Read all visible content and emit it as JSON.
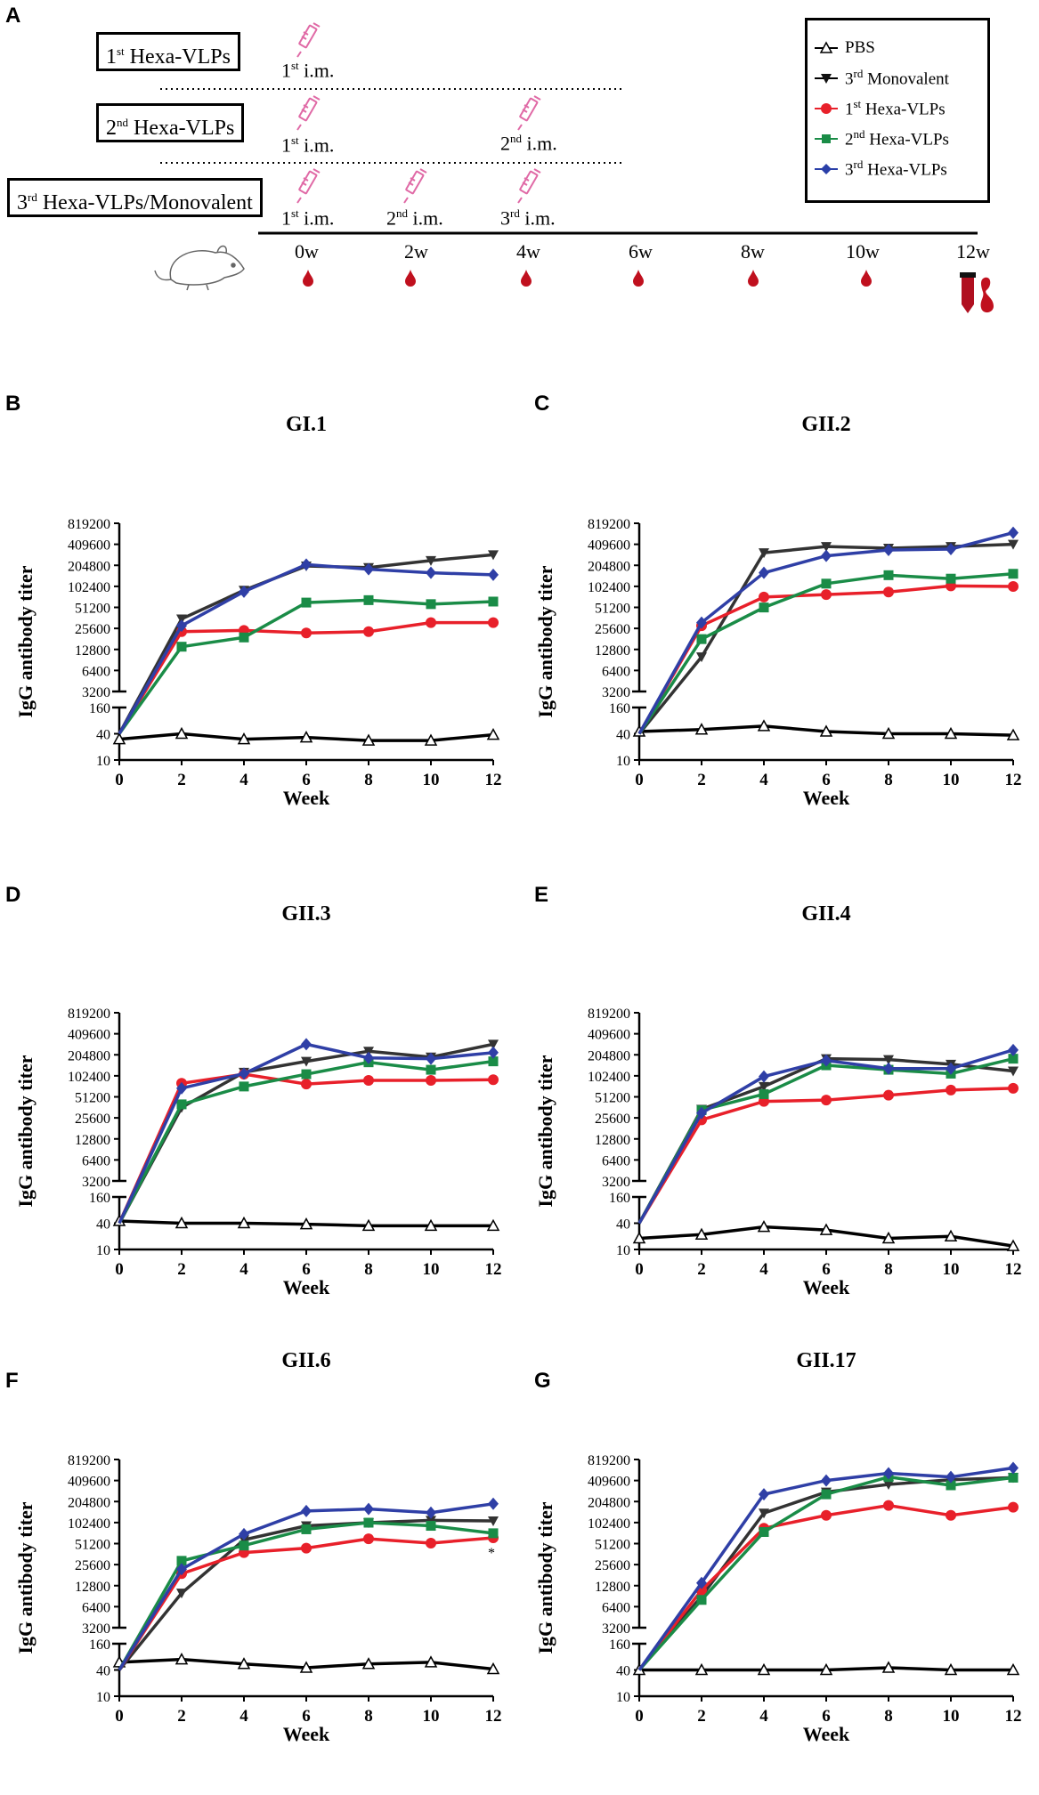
{
  "panel_letters": {
    "a": "A",
    "b": "B",
    "c": "C",
    "d": "D",
    "e": "E",
    "f": "F",
    "g": "G"
  },
  "schedule": {
    "groups": [
      {
        "sup": "st",
        "name": "Hexa-VLPs",
        "num": "1"
      },
      {
        "sup": "nd",
        "name": "Hexa-VLPs",
        "num": "2"
      },
      {
        "sup": "rd",
        "name": "Hexa-VLPs/Monovalent",
        "num": "3"
      }
    ],
    "injections": {
      "first": {
        "num": "1",
        "sup": "st",
        "text": "i.m."
      },
      "second": {
        "num": "2",
        "sup": "nd",
        "text": "i.m."
      },
      "third": {
        "num": "3",
        "sup": "rd",
        "text": "i.m."
      }
    },
    "weeks": [
      "0w",
      "2w",
      "4w",
      "6w",
      "8w",
      "10w",
      "12w"
    ]
  },
  "legend": [
    {
      "num": "",
      "sup": "",
      "name": "PBS",
      "color": "#000000",
      "marker": "triangle-open"
    },
    {
      "num": "3",
      "sup": "rd",
      "name": "Monovalent",
      "color": "#1a1a1a",
      "marker": "triangle-down"
    },
    {
      "num": "1",
      "sup": "st",
      "name": "Hexa-VLPs",
      "color": "#e8202a",
      "marker": "circle"
    },
    {
      "num": "2",
      "sup": "nd",
      "name": "Hexa-VLPs",
      "color": "#1a8c47",
      "marker": "square"
    },
    {
      "num": "3",
      "sup": "rd",
      "name": "Hexa-VLPs",
      "color": "#2a3fa8",
      "marker": "diamond"
    }
  ],
  "colors": {
    "pbs": "#000000",
    "mono": "#333333",
    "hexa1": "#e8202a",
    "hexa2": "#1a8c47",
    "hexa3": "#2f3fa6"
  },
  "chart_data": [
    {
      "panel": "B",
      "title": "GI.1",
      "type": "line",
      "xlabel": "Week",
      "ylabel": "IgG antibody titer",
      "x": [
        0,
        2,
        4,
        6,
        8,
        10,
        12
      ],
      "y_ticks_upper": [
        "819200",
        "409600",
        "204800",
        "102400",
        "51200",
        "25600",
        "12800",
        "6400",
        "3200"
      ],
      "y_ticks_lower": [
        "160",
        "40",
        "10"
      ],
      "series": [
        {
          "name": "PBS",
          "values": [
            30,
            40,
            30,
            33,
            28,
            28,
            38
          ]
        },
        {
          "name": "3rd Monovalent",
          "values": [
            40,
            35000,
            90000,
            200000,
            190000,
            240000,
            290000
          ]
        },
        {
          "name": "1st Hexa-VLPs",
          "values": [
            40,
            23000,
            24000,
            22000,
            23000,
            31000,
            31000
          ]
        },
        {
          "name": "2nd Hexa-VLPs",
          "values": [
            40,
            14000,
            19000,
            60000,
            65000,
            57000,
            62000
          ]
        },
        {
          "name": "3rd Hexa-VLPs",
          "values": [
            40,
            28000,
            86000,
            210000,
            180000,
            160000,
            150000
          ]
        }
      ]
    },
    {
      "panel": "C",
      "title": "GII.2",
      "type": "line",
      "xlabel": "Week",
      "ylabel": "IgG antibody titer",
      "x": [
        0,
        2,
        4,
        6,
        8,
        10,
        12
      ],
      "y_ticks_upper": [
        "819200",
        "409600",
        "204800",
        "102400",
        "51200",
        "25600",
        "12800",
        "6400",
        "3200"
      ],
      "y_ticks_lower": [
        "160",
        "40",
        "10"
      ],
      "series": [
        {
          "name": "PBS",
          "values": [
            45,
            50,
            60,
            45,
            40,
            40,
            37
          ]
        },
        {
          "name": "3rd Monovalent",
          "values": [
            40,
            10000,
            310000,
            380000,
            360000,
            380000,
            410000
          ]
        },
        {
          "name": "1st Hexa-VLPs",
          "values": [
            40,
            28000,
            72000,
            78000,
            85000,
            104000,
            102000
          ]
        },
        {
          "name": "2nd Hexa-VLPs",
          "values": [
            40,
            18000,
            51000,
            112000,
            148000,
            132000,
            155000
          ]
        },
        {
          "name": "3rd Hexa-VLPs",
          "values": [
            40,
            31000,
            160000,
            280000,
            340000,
            350000,
            600000
          ]
        }
      ]
    },
    {
      "panel": "D",
      "title": "GII.3",
      "type": "line",
      "xlabel": "Week",
      "ylabel": "IgG antibody titer",
      "x": [
        0,
        2,
        4,
        6,
        8,
        10,
        12
      ],
      "y_ticks_upper": [
        "819200",
        "409600",
        "204800",
        "102400",
        "51200",
        "25600",
        "12800",
        "6400",
        "3200"
      ],
      "y_ticks_lower": [
        "160",
        "40",
        "10"
      ],
      "series": [
        {
          "name": "PBS",
          "values": [
            45,
            40,
            40,
            38,
            35,
            35,
            35
          ]
        },
        {
          "name": "3rd Monovalent",
          "values": [
            40,
            36000,
            115000,
            165000,
            230000,
            190000,
            290000
          ]
        },
        {
          "name": "1st Hexa-VLPs",
          "values": [
            40,
            80000,
            108000,
            78000,
            88000,
            88000,
            90000
          ]
        },
        {
          "name": "2nd Hexa-VLPs",
          "values": [
            40,
            40000,
            72000,
            108000,
            160000,
            125000,
            165000
          ]
        },
        {
          "name": "3rd Hexa-VLPs",
          "values": [
            40,
            68000,
            110000,
            290000,
            185000,
            180000,
            220000
          ]
        }
      ]
    },
    {
      "panel": "E",
      "title": "GII.4",
      "type": "line",
      "xlabel": "Week",
      "ylabel": "IgG antibody titer",
      "x": [
        0,
        2,
        4,
        6,
        8,
        10,
        12
      ],
      "y_ticks_upper": [
        "819200",
        "409600",
        "204800",
        "102400",
        "51200",
        "25600",
        "12800",
        "6400",
        "3200"
      ],
      "y_ticks_lower": [
        "160",
        "40",
        "10"
      ],
      "series": [
        {
          "name": "PBS",
          "values": [
            18,
            22,
            33,
            28,
            18,
            20,
            12
          ]
        },
        {
          "name": "3rd Monovalent",
          "values": [
            40,
            34000,
            72000,
            180000,
            175000,
            150000,
            120000
          ]
        },
        {
          "name": "1st Hexa-VLPs",
          "values": [
            40,
            24000,
            44000,
            46000,
            54000,
            64000,
            68000
          ]
        },
        {
          "name": "2nd Hexa-VLPs",
          "values": [
            40,
            33000,
            56000,
            145000,
            125000,
            110000,
            180000
          ]
        },
        {
          "name": "3rd Hexa-VLPs",
          "values": [
            40,
            30000,
            100000,
            170000,
            130000,
            130000,
            240000
          ]
        }
      ]
    },
    {
      "panel": "F",
      "title": "GII.6",
      "type": "line",
      "xlabel": "Week",
      "ylabel": "IgG antibody titer",
      "x": [
        0,
        2,
        4,
        6,
        8,
        10,
        12
      ],
      "y_ticks_upper": [
        "819200",
        "409600",
        "204800",
        "102400",
        "51200",
        "25600",
        "12800",
        "6400",
        "3200"
      ],
      "y_ticks_lower": [
        "160",
        "40",
        "10"
      ],
      "series": [
        {
          "name": "PBS",
          "values": [
            60,
            70,
            55,
            45,
            55,
            60,
            42
          ]
        },
        {
          "name": "3rd Monovalent",
          "values": [
            40,
            10000,
            58000,
            92000,
            102000,
            110000,
            108000
          ]
        },
        {
          "name": "1st Hexa-VLPs",
          "values": [
            40,
            19000,
            38000,
            44000,
            60000,
            52000,
            62000
          ]
        },
        {
          "name": "2nd Hexa-VLPs",
          "values": [
            40,
            29000,
            48000,
            82000,
            102000,
            92000,
            72000
          ]
        },
        {
          "name": "3rd Hexa-VLPs",
          "values": [
            40,
            22000,
            70000,
            150000,
            160000,
            142000,
            190000
          ]
        }
      ],
      "annotation": "*"
    },
    {
      "panel": "G",
      "title": "GII.17",
      "type": "line",
      "xlabel": "Week",
      "ylabel": "IgG antibody titer",
      "x": [
        0,
        2,
        4,
        6,
        8,
        10,
        12
      ],
      "y_ticks_upper": [
        "819200",
        "409600",
        "204800",
        "102400",
        "51200",
        "25600",
        "12800",
        "6400",
        "3200"
      ],
      "y_ticks_lower": [
        "160",
        "40",
        "10"
      ],
      "series": [
        {
          "name": "PBS",
          "values": [
            40,
            40,
            40,
            40,
            45,
            40,
            40
          ]
        },
        {
          "name": "3rd Monovalent",
          "values": [
            40,
            9000,
            140000,
            280000,
            360000,
            420000,
            450000
          ]
        },
        {
          "name": "1st Hexa-VLPs",
          "values": [
            40,
            11000,
            85000,
            130000,
            180000,
            130000,
            170000
          ]
        },
        {
          "name": "2nd Hexa-VLPs",
          "values": [
            40,
            8000,
            75000,
            260000,
            460000,
            350000,
            450000
          ]
        },
        {
          "name": "3rd Hexa-VLPs",
          "values": [
            40,
            14000,
            260000,
            410000,
            520000,
            460000,
            620000
          ]
        }
      ]
    }
  ]
}
